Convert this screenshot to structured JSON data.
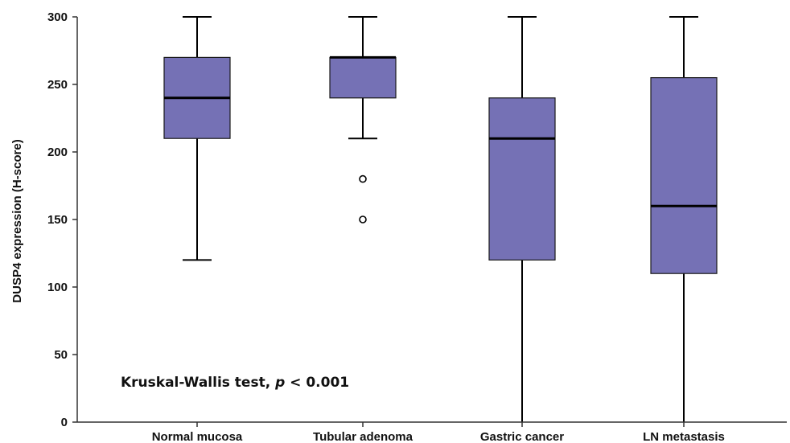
{
  "chart_data": {
    "type": "box",
    "ylabel": "DUSP4 expression (H-score)",
    "ylim": [
      0,
      300
    ],
    "yticks": [
      0,
      50,
      100,
      150,
      200,
      250,
      300
    ],
    "grid": false,
    "box_color": "#7571B5",
    "annotation": {
      "text_before": "Kruskal-Wallis test, ",
      "italic": "p",
      "text_after": " < 0.001"
    },
    "categories": [
      "Normal mucosa",
      "Tubular adenoma",
      "Gastric cancer",
      "LN metastasis"
    ],
    "boxes": [
      {
        "whisker_low": 120,
        "q1": 210,
        "median": 240,
        "q3": 270,
        "whisker_high": 300,
        "outliers": []
      },
      {
        "whisker_low": 210,
        "q1": 240,
        "median": 270,
        "q3": 270,
        "whisker_high": 300,
        "outliers": [
          180,
          150
        ]
      },
      {
        "whisker_low": 0,
        "q1": 120,
        "median": 210,
        "q3": 240,
        "whisker_high": 300,
        "outliers": []
      },
      {
        "whisker_low": 0,
        "q1": 110,
        "median": 160,
        "q3": 255,
        "whisker_high": 300,
        "outliers": []
      }
    ]
  }
}
